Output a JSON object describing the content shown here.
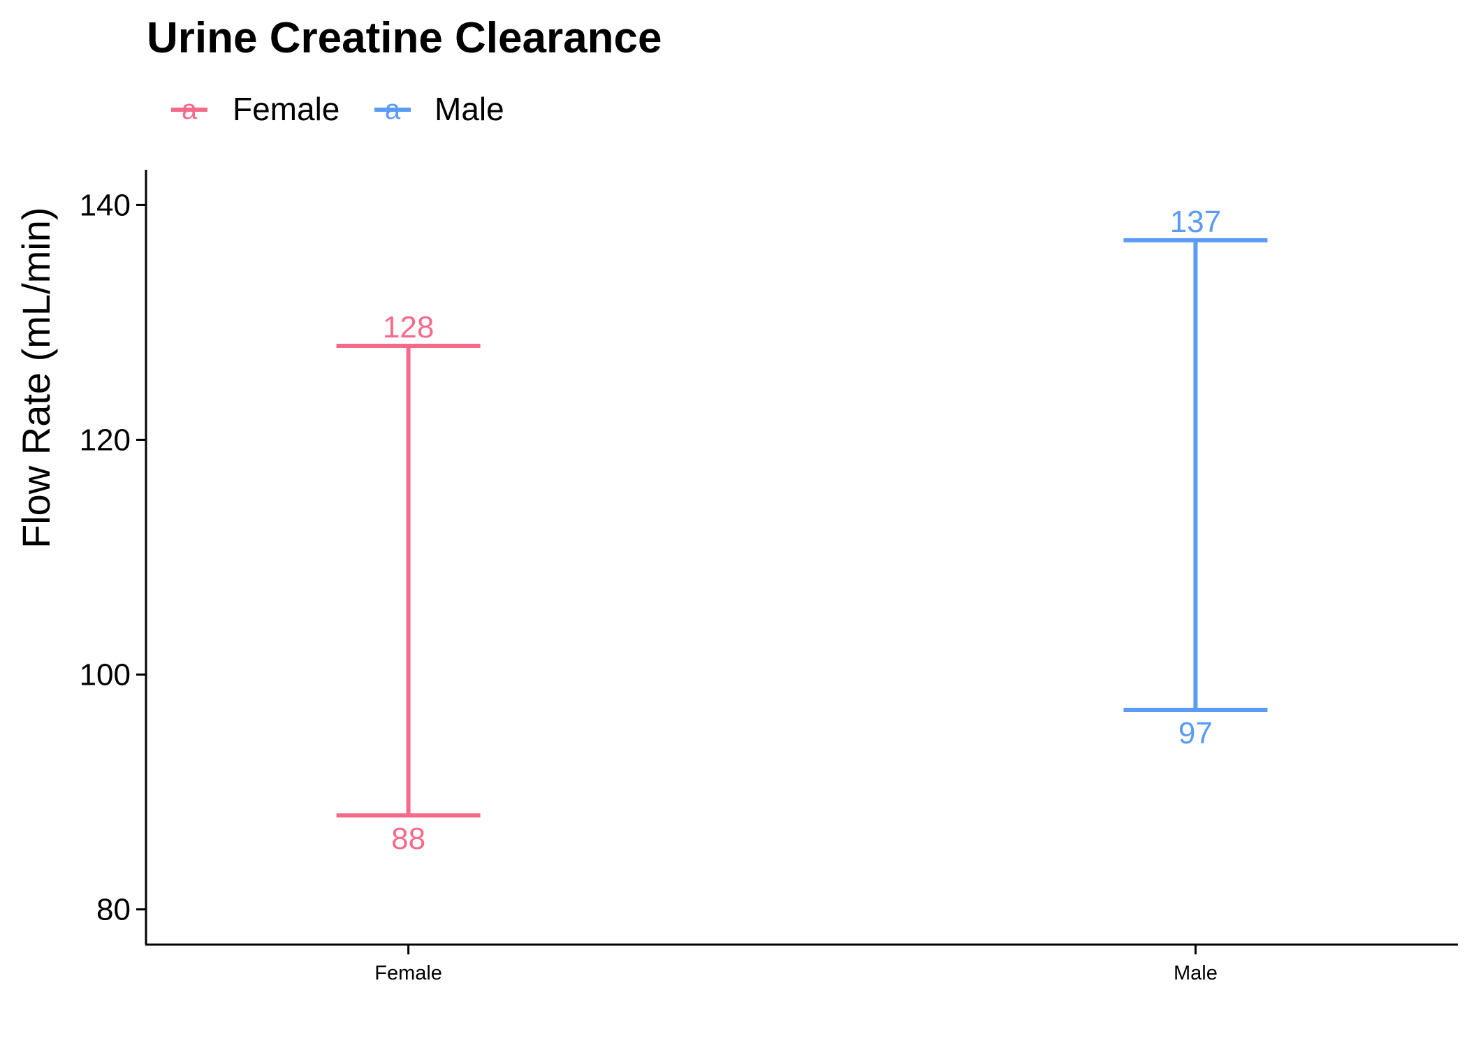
{
  "chart_data": {
    "type": "errorbar",
    "title": "Urine Creatine Clearance",
    "xlabel": "",
    "ylabel": "Flow Rate (mL/min)",
    "ylim": [
      77,
      143
    ],
    "y_ticks": [
      80,
      100,
      120,
      140
    ],
    "grid": false,
    "legend": {
      "position": "top-left",
      "glyph": "a",
      "items": [
        {
          "label": "Female",
          "color": "#F46B8A"
        },
        {
          "label": "Male",
          "color": "#5B9BF5"
        }
      ]
    },
    "categories": [
      "Female",
      "Male"
    ],
    "series": [
      {
        "name": "Female",
        "color": "#F46B8A",
        "low": 88,
        "high": 128,
        "low_label": "88",
        "high_label": "128"
      },
      {
        "name": "Male",
        "color": "#5B9BF5",
        "low": 97,
        "high": 137,
        "low_label": "97",
        "high_label": "137"
      }
    ]
  }
}
